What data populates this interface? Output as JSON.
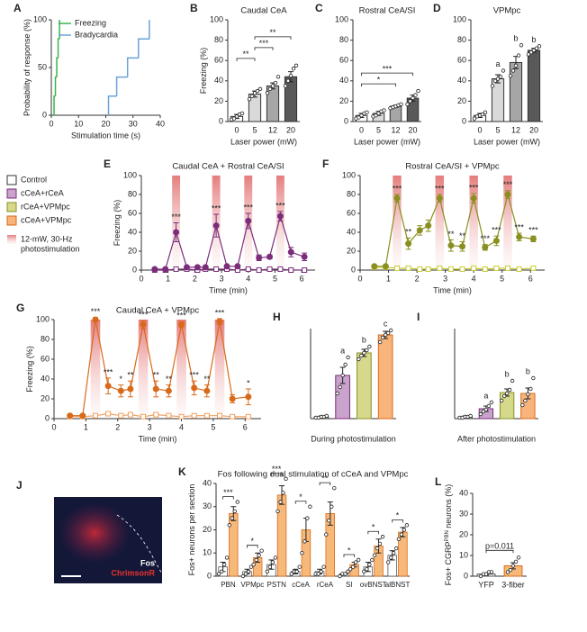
{
  "chart_data": [
    {
      "type": "step",
      "panel": "A",
      "xlabel": "Stimulation time (s)",
      "ylabel": "Probability of response (%)",
      "xlim": [
        0,
        40
      ],
      "xticks": [
        0,
        10,
        20,
        30,
        40
      ],
      "ylim": [
        0,
        100
      ],
      "yticks": [
        0,
        50,
        100
      ],
      "legend": "upper-left",
      "series": [
        {
          "name": "Freezing",
          "color": "#3cb44b",
          "x": [
            1,
            1.5,
            2,
            2.5,
            3
          ],
          "values": [
            20,
            40,
            60,
            80,
            100
          ]
        },
        {
          "name": "Bradycardia",
          "color": "#6aa3d8",
          "x": [
            21,
            24,
            28,
            32,
            36
          ],
          "values": [
            20,
            40,
            60,
            80,
            100
          ]
        }
      ]
    },
    {
      "type": "bar",
      "panel": "B",
      "title": "Caudal CeA",
      "xlabel": "Laser power (mW)",
      "ylabel": "Freezing (%)",
      "categories": [
        "0",
        "5",
        "12",
        "20"
      ],
      "values": [
        5,
        27,
        35,
        44
      ],
      "errors": [
        2,
        3,
        3,
        5
      ],
      "colors": [
        "#ffffff",
        "#d9d9d9",
        "#a6a6a6",
        "#595959"
      ],
      "points": [
        [
          2,
          3,
          5,
          7,
          8
        ],
        [
          22,
          25,
          28,
          30,
          32
        ],
        [
          28,
          32,
          35,
          38,
          44
        ],
        [
          35,
          40,
          45,
          52,
          55
        ]
      ],
      "comparisons": [
        {
          "between": [
            "0",
            "5"
          ],
          "label": "**"
        },
        {
          "between": [
            "5",
            "12"
          ],
          "label": "***"
        },
        {
          "between": [
            "5",
            "20"
          ],
          "label": "**"
        }
      ],
      "ylim": [
        0,
        100
      ],
      "yticks": [
        0,
        20,
        40,
        60,
        80,
        100
      ]
    },
    {
      "type": "bar",
      "panel": "C",
      "title": "Rostral CeA/SI",
      "xlabel": "Laser power (mW)",
      "categories": [
        "0",
        "5",
        "12",
        "20"
      ],
      "values": [
        6,
        8,
        15,
        23
      ],
      "errors": [
        2,
        2,
        1,
        3
      ],
      "colors": [
        "#ffffff",
        "#d9d9d9",
        "#a6a6a6",
        "#595959"
      ],
      "points": [
        [
          3,
          4,
          6,
          8,
          9
        ],
        [
          5,
          6,
          8,
          10,
          11
        ],
        [
          13,
          14,
          15,
          16,
          17
        ],
        [
          17,
          20,
          23,
          26,
          30
        ]
      ],
      "comparisons": [
        {
          "between": [
            "0",
            "12"
          ],
          "label": "*"
        },
        {
          "between": [
            "0",
            "20"
          ],
          "label": "***"
        }
      ],
      "ylim": [
        0,
        100
      ],
      "yticks": [
        0,
        20,
        40,
        60,
        80,
        100
      ]
    },
    {
      "type": "bar",
      "panel": "D",
      "title": "VPMpc",
      "xlabel": "Laser power (mW)",
      "categories": [
        "0",
        "5",
        "12",
        "20"
      ],
      "values": [
        6,
        42,
        58,
        70
      ],
      "errors": [
        2,
        4,
        6,
        2
      ],
      "colors": [
        "#ffffff",
        "#d9d9d9",
        "#a6a6a6",
        "#595959"
      ],
      "points": [
        [
          3,
          5,
          6,
          7,
          9
        ],
        [
          35,
          40,
          42,
          44,
          50
        ],
        [
          45,
          50,
          55,
          65,
          75
        ],
        [
          66,
          68,
          70,
          72,
          74
        ]
      ],
      "letters": [
        null,
        "a",
        "b",
        "b"
      ],
      "ylim": [
        0,
        100
      ],
      "yticks": [
        0,
        20,
        40,
        60,
        80,
        100
      ]
    },
    {
      "type": "line",
      "panel": "E",
      "title": "Caudal CeA + Rostral CeA/SI",
      "xlabel": "Time (min)",
      "ylabel": "Freezing (%)",
      "x": [
        0.5,
        0.9,
        1.3,
        1.7,
        2.1,
        2.4,
        2.8,
        3.2,
        3.6,
        4.0,
        4.4,
        4.8,
        5.2,
        5.6,
        6.1
      ],
      "xlim": [
        0,
        6.5
      ],
      "xticks": [
        0,
        1,
        2,
        3,
        4,
        5,
        6
      ],
      "ylim": [
        0,
        100
      ],
      "yticks": [
        0,
        20,
        40,
        60,
        80,
        100
      ],
      "stim": [
        1.3,
        2.8,
        4.0,
        5.2
      ],
      "series": [
        {
          "color": "#7b2d7b",
          "marker": "square-open",
          "values": [
            0,
            0,
            1,
            1,
            0,
            1,
            1,
            1,
            0,
            1,
            0,
            1,
            1,
            0,
            0
          ],
          "errors": [
            1,
            1,
            1,
            1,
            1,
            1,
            1,
            1,
            1,
            1,
            1,
            1,
            1,
            1,
            1
          ]
        },
        {
          "color": "#7b2d7b",
          "marker": "circle",
          "values": [
            1,
            1,
            40,
            3,
            3,
            3,
            47,
            4,
            4,
            52,
            13,
            14,
            57,
            19,
            14
          ],
          "errors": [
            1,
            1,
            10,
            1,
            1,
            1,
            12,
            1,
            1,
            8,
            3,
            2,
            5,
            5,
            4
          ],
          "annotations": [
            null,
            null,
            "***",
            null,
            null,
            null,
            "***",
            null,
            null,
            "***",
            null,
            null,
            "***",
            null,
            null
          ]
        }
      ]
    },
    {
      "type": "line",
      "panel": "F",
      "title": "Rostral CeA/SI + VPMpc",
      "xlabel": "Time (min)",
      "x": [
        0.5,
        0.9,
        1.3,
        1.7,
        2.1,
        2.4,
        2.8,
        3.2,
        3.6,
        4.0,
        4.4,
        4.8,
        5.2,
        5.6,
        6.1
      ],
      "xlim": [
        0,
        6.5
      ],
      "xticks": [
        0,
        1,
        2,
        3,
        4,
        5,
        6
      ],
      "ylim": [
        0,
        100
      ],
      "yticks": [
        0,
        20,
        40,
        60,
        80,
        100
      ],
      "stim": [
        1.3,
        2.8,
        4.0,
        5.2
      ],
      "series": [
        {
          "color": "#c9cc3a",
          "marker": "square-open",
          "values": [
            3,
            3,
            2,
            2,
            1,
            1,
            2,
            1,
            1,
            2,
            1,
            2,
            2,
            1,
            2
          ],
          "errors": [
            1,
            1,
            1,
            1,
            1,
            1,
            1,
            1,
            1,
            1,
            1,
            1,
            1,
            1,
            1
          ]
        },
        {
          "color": "#8a8f1f",
          "marker": "circle",
          "values": [
            4,
            4,
            76,
            28,
            42,
            47,
            76,
            26,
            25,
            76,
            24,
            31,
            80,
            35,
            33
          ],
          "errors": [
            1,
            1,
            4,
            6,
            5,
            6,
            4,
            6,
            5,
            5,
            3,
            5,
            4,
            4,
            3
          ],
          "annotations": [
            null,
            null,
            "***",
            "**",
            null,
            null,
            "***",
            "**",
            "**",
            "***",
            "***",
            "***",
            "***",
            "***",
            "***"
          ]
        }
      ]
    },
    {
      "type": "line",
      "panel": "G",
      "title": "Caudal CeA + VPMpc",
      "xlabel": "Time (min)",
      "ylabel": "Freezing (%)",
      "x": [
        0.5,
        0.9,
        1.3,
        1.7,
        2.1,
        2.4,
        2.8,
        3.2,
        3.6,
        4.0,
        4.4,
        4.8,
        5.2,
        5.6,
        6.1
      ],
      "xlim": [
        0,
        6.5
      ],
      "xticks": [
        0,
        1,
        2,
        3,
        4,
        5,
        6
      ],
      "ylim": [
        0,
        100
      ],
      "yticks": [
        0,
        20,
        40,
        60,
        80,
        100
      ],
      "stim": [
        1.3,
        2.8,
        4.0,
        5.2
      ],
      "series": [
        {
          "color": "#f0a060",
          "marker": "square-open",
          "values": [
            2,
            2,
            3,
            5,
            3,
            4,
            2,
            4,
            3,
            2,
            3,
            3,
            3,
            2,
            2
          ],
          "errors": [
            1,
            1,
            1,
            1,
            1,
            1,
            1,
            1,
            1,
            1,
            1,
            1,
            1,
            1,
            1
          ]
        },
        {
          "color": "#d86a1a",
          "marker": "circle",
          "values": [
            3,
            3,
            100,
            33,
            28,
            30,
            95,
            30,
            28,
            95,
            31,
            28,
            98,
            20,
            22
          ],
          "errors": [
            1,
            1,
            2,
            8,
            6,
            8,
            4,
            8,
            6,
            3,
            7,
            6,
            3,
            4,
            8
          ],
          "annotations": [
            null,
            null,
            "***",
            "***",
            "*",
            "**",
            "***",
            "**",
            "**",
            "***",
            "***",
            "**",
            "***",
            null,
            "*"
          ]
        }
      ]
    },
    {
      "type": "bar",
      "panel": "H",
      "xlabel": "During photostimulation",
      "categories": [
        null,
        null,
        null,
        null
      ],
      "values": [
        2,
        48,
        73,
        93
      ],
      "errors": [
        1,
        9,
        4,
        4
      ],
      "colors": [
        "#ffffff",
        "#c9a3cc",
        "#d6d98c",
        "#f8b47a"
      ],
      "edges": [
        "#333333",
        "#7b2d7b",
        "#8a8f1f",
        "#d86a1a"
      ],
      "points": [
        [
          1,
          1,
          2,
          2,
          3
        ],
        [
          28,
          35,
          48,
          60,
          68
        ],
        [
          66,
          70,
          73,
          76,
          80
        ],
        [
          85,
          90,
          93,
          95,
          98
        ]
      ],
      "letters": [
        null,
        "a",
        "b",
        "c"
      ],
      "ylim": [
        0,
        100
      ]
    },
    {
      "type": "bar",
      "panel": "I",
      "xlabel": "After photostimulation",
      "categories": [
        null,
        null,
        null,
        null
      ],
      "values": [
        2,
        11,
        29,
        28
      ],
      "errors": [
        1,
        3,
        4,
        6
      ],
      "colors": [
        "#ffffff",
        "#c9a3cc",
        "#d6d98c",
        "#f8b47a"
      ],
      "edges": [
        "#333333",
        "#7b2d7b",
        "#8a8f1f",
        "#d86a1a"
      ],
      "points": [
        [
          1,
          1,
          2,
          2,
          3
        ],
        [
          5,
          8,
          10,
          14,
          18
        ],
        [
          20,
          25,
          28,
          32,
          42
        ],
        [
          15,
          20,
          27,
          33,
          45
        ]
      ],
      "letters": [
        null,
        "a",
        "b",
        "b"
      ],
      "ylim": [
        0,
        100
      ]
    },
    {
      "type": "image",
      "panel": "J",
      "labels": [
        {
          "text": "Fos",
          "color": "#ffffff"
        },
        {
          "text": "ChrimsonR",
          "color": "#e8322e"
        }
      ]
    },
    {
      "type": "grouped_bar",
      "panel": "K",
      "title": "Fos following dual stimulation of cCeA and VPMpc",
      "ylabel": "Fos+ neurons per section",
      "categories": [
        "PBN",
        "VPMpc",
        "PSTN",
        "cCeA",
        "rCeA",
        "SI",
        "ovBNST",
        "alBNST"
      ],
      "series": [
        {
          "color": "#ffffff",
          "edge": "#555555",
          "values": [
            4,
            2,
            5,
            2,
            2,
            1,
            4,
            9
          ],
          "errors": [
            2,
            1,
            2,
            1,
            1,
            0.5,
            2,
            2
          ],
          "points": [
            [
              1,
              2,
              5,
              8
            ],
            [
              0,
              1,
              2,
              4
            ],
            [
              2,
              4,
              6,
              8
            ],
            [
              1,
              2,
              2,
              4
            ],
            [
              1,
              1,
              2,
              4
            ],
            [
              0,
              1,
              1,
              2
            ],
            [
              2,
              3,
              5,
              7
            ],
            [
              6,
              8,
              10,
              12
            ]
          ]
        },
        {
          "color": "#f6b97a",
          "edge": "#d86a1a",
          "values": [
            27,
            8,
            35,
            20,
            27,
            5,
            13,
            19
          ],
          "errors": [
            3,
            2,
            4,
            5,
            5,
            1,
            3,
            2
          ],
          "points": [
            [
              22,
              25,
              28,
              32
            ],
            [
              5,
              7,
              9,
              11
            ],
            [
              28,
              32,
              36,
              42
            ],
            [
              10,
              15,
              25,
              30
            ],
            [
              18,
              24,
              30,
              38
            ],
            [
              3,
              4,
              6,
              7
            ],
            [
              9,
              12,
              14,
              17
            ],
            [
              16,
              18,
              20,
              22
            ]
          ]
        }
      ],
      "significance": [
        "***",
        "*",
        "***",
        "*",
        "**",
        "*",
        "*",
        "*"
      ],
      "ylim": [
        0,
        40
      ],
      "yticks": [
        0,
        10,
        20,
        30,
        40
      ]
    },
    {
      "type": "bar",
      "panel": "L",
      "ylabel": "Fos+ CGRP",
      "ylabel_sup": "PBN",
      "ylabel_end": " neurons (%)",
      "categories": [
        "YFP",
        "3-fiber"
      ],
      "values": [
        1,
        5
      ],
      "errors": [
        0.5,
        1.5
      ],
      "colors": [
        "#ffffff",
        "#f6b97a"
      ],
      "edges": [
        "#555555",
        "#d86a1a"
      ],
      "points": [
        [
          0,
          1,
          1,
          2,
          2
        ],
        [
          2,
          3,
          5,
          7,
          9
        ]
      ],
      "comparisons": [
        {
          "between": [
            "YFP",
            "3-fiber"
          ],
          "label": "p=0.011"
        }
      ],
      "ylim": [
        0,
        40
      ],
      "yticks": [
        0,
        10,
        20,
        30,
        40
      ]
    }
  ],
  "legend": {
    "entries": [
      {
        "name": "Control",
        "color": "#ffffff",
        "edge": "#333333"
      },
      {
        "name": "cCeA+rCeA",
        "color": "#c9a3cc",
        "edge": "#7b2d7b"
      },
      {
        "name": "rCeA+VPMpc",
        "color": "#d6d98c",
        "edge": "#8a8f1f"
      },
      {
        "name": "cCeA+VPMpc",
        "color": "#f8b47a",
        "edge": "#d86a1a"
      }
    ],
    "stim_label": [
      "12-mW, 30-Hz",
      "photostimulation"
    ]
  }
}
